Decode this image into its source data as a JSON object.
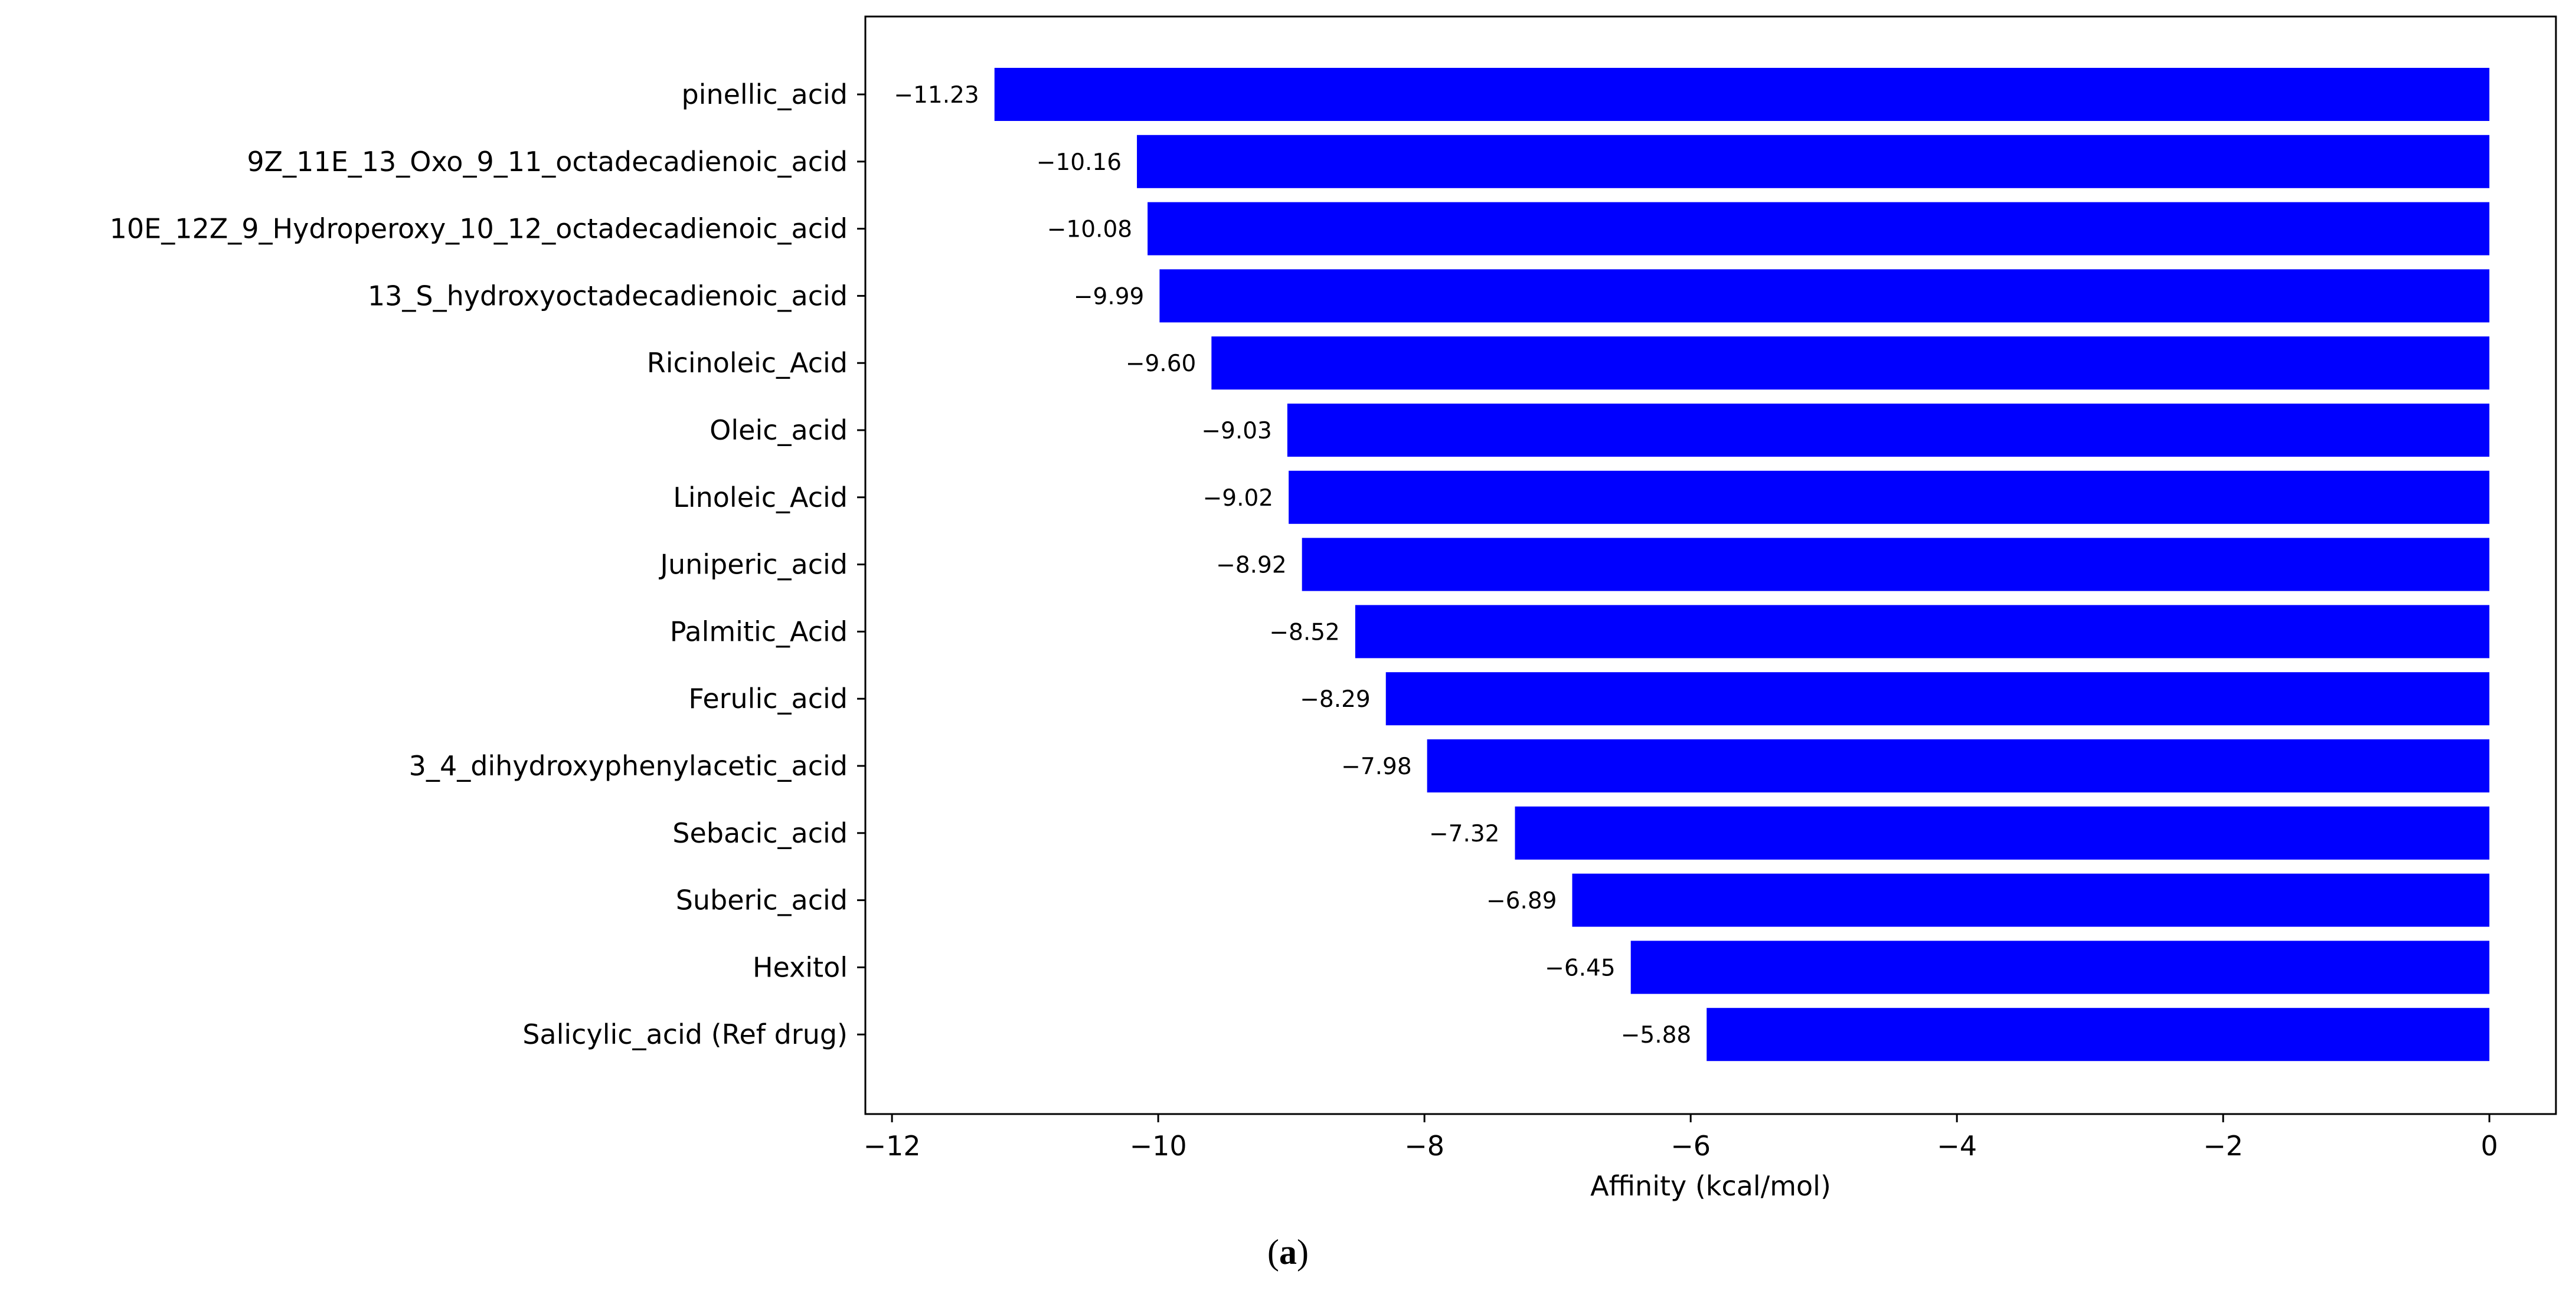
{
  "chart_data": {
    "type": "bar",
    "orientation": "horizontal",
    "categories": [
      "pinellic_acid",
      "9Z_11E_13_Oxo_9_11_octadecadienoic_acid",
      "10E_12Z_9_Hydroperoxy_10_12_octadecadienoic_acid",
      "13_S_hydroxyoctadecadienoic_acid",
      "Ricinoleic_Acid",
      "Oleic_acid",
      "Linoleic_Acid",
      "Juniperic_acid",
      "Palmitic_Acid",
      "Ferulic_acid",
      "3_4_dihydroxyphenylacetic_acid",
      "Sebacic_acid",
      "Suberic_acid",
      "Hexitol",
      "Salicylic_acid (Ref drug)"
    ],
    "values": [
      -11.23,
      -10.16,
      -10.08,
      -9.99,
      -9.6,
      -9.03,
      -9.02,
      -8.92,
      -8.52,
      -8.29,
      -7.98,
      -7.32,
      -6.89,
      -6.45,
      -5.88
    ],
    "value_labels": [
      "−11.23",
      "−10.16",
      "−10.08",
      "−9.99",
      "−9.60",
      "−9.03",
      "−9.02",
      "−8.92",
      "−8.52",
      "−8.29",
      "−7.98",
      "−7.32",
      "−6.89",
      "−6.45",
      "−5.88"
    ],
    "xticks": [
      -12,
      -10,
      -8,
      -6,
      -4,
      -2,
      0
    ],
    "xtick_labels": [
      "−12",
      "−10",
      "−8",
      "−6",
      "−4",
      "−2",
      "0"
    ],
    "xlim": [
      -12.2,
      0.5
    ],
    "xlabel": "Affinity (kcal/mol)",
    "ylabel": "",
    "title": "",
    "bar_color": "#0000ff",
    "grid": false
  },
  "caption": {
    "open": "(",
    "letter": "a",
    "close": ")"
  }
}
